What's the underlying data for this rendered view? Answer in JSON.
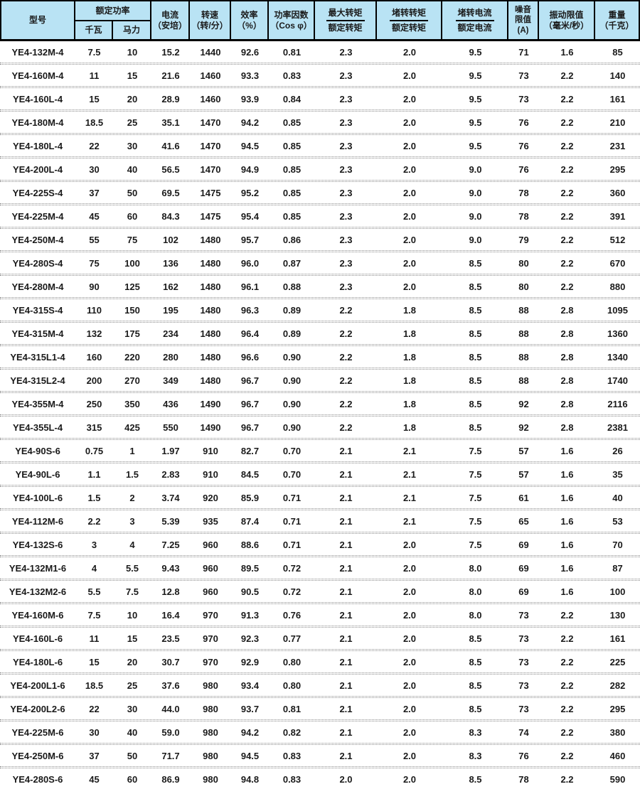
{
  "colors": {
    "header_bg": "#b9e3f4",
    "grid_border": "#000000",
    "row_separator": "#8c8c8c",
    "text": "#1a1a1a"
  },
  "table": {
    "header": {
      "model": "型号",
      "rated_power": "额定功率",
      "kw": "千瓦",
      "hp": "马力",
      "current_line1": "电流",
      "current_line2": "（安培）",
      "speed_line1": "转速",
      "speed_line2": "（转/分）",
      "efficiency_line1": "效率",
      "efficiency_line2": "（%）",
      "power_factor_line1": "功率因数",
      "power_factor_line2": "（Cos φ）",
      "max_torque_num": "最大转矩",
      "max_torque_den": "额定转矩",
      "locked_torque_num": "堵转转矩",
      "locked_torque_den": "额定转矩",
      "locked_current_num": "堵转电流",
      "locked_current_den": "额定电流",
      "noise_line1": "噪音",
      "noise_line2": "限值",
      "noise_line3": "(A)",
      "vibration_line1": "振动限值",
      "vibration_line2": "（毫米/秒）",
      "weight_line1": "重量",
      "weight_line2": "（千克）"
    },
    "rows": [
      [
        "YE4-132M-4",
        "7.5",
        "10",
        "15.2",
        "1440",
        "92.6",
        "0.81",
        "2.3",
        "2.0",
        "9.5",
        "71",
        "1.6",
        "85"
      ],
      [
        "YE4-160M-4",
        "11",
        "15",
        "21.6",
        "1460",
        "93.3",
        "0.83",
        "2.3",
        "2.0",
        "9.5",
        "73",
        "2.2",
        "140"
      ],
      [
        "YE4-160L-4",
        "15",
        "20",
        "28.9",
        "1460",
        "93.9",
        "0.84",
        "2.3",
        "2.0",
        "9.5",
        "73",
        "2.2",
        "161"
      ],
      [
        "YE4-180M-4",
        "18.5",
        "25",
        "35.1",
        "1470",
        "94.2",
        "0.85",
        "2.3",
        "2.0",
        "9.5",
        "76",
        "2.2",
        "210"
      ],
      [
        "YE4-180L-4",
        "22",
        "30",
        "41.6",
        "1470",
        "94.5",
        "0.85",
        "2.3",
        "2.0",
        "9.5",
        "76",
        "2.2",
        "231"
      ],
      [
        "YE4-200L-4",
        "30",
        "40",
        "56.5",
        "1470",
        "94.9",
        "0.85",
        "2.3",
        "2.0",
        "9.0",
        "76",
        "2.2",
        "295"
      ],
      [
        "YE4-225S-4",
        "37",
        "50",
        "69.5",
        "1475",
        "95.2",
        "0.85",
        "2.3",
        "2.0",
        "9.0",
        "78",
        "2.2",
        "360"
      ],
      [
        "YE4-225M-4",
        "45",
        "60",
        "84.3",
        "1475",
        "95.4",
        "0.85",
        "2.3",
        "2.0",
        "9.0",
        "78",
        "2.2",
        "391"
      ],
      [
        "YE4-250M-4",
        "55",
        "75",
        "102",
        "1480",
        "95.7",
        "0.86",
        "2.3",
        "2.0",
        "9.0",
        "79",
        "2.2",
        "512"
      ],
      [
        "YE4-280S-4",
        "75",
        "100",
        "136",
        "1480",
        "96.0",
        "0.87",
        "2.3",
        "2.0",
        "8.5",
        "80",
        "2.2",
        "670"
      ],
      [
        "YE4-280M-4",
        "90",
        "125",
        "162",
        "1480",
        "96.1",
        "0.88",
        "2.3",
        "2.0",
        "8.5",
        "80",
        "2.2",
        "880"
      ],
      [
        "YE4-315S-4",
        "110",
        "150",
        "195",
        "1480",
        "96.3",
        "0.89",
        "2.2",
        "1.8",
        "8.5",
        "88",
        "2.8",
        "1095"
      ],
      [
        "YE4-315M-4",
        "132",
        "175",
        "234",
        "1480",
        "96.4",
        "0.89",
        "2.2",
        "1.8",
        "8.5",
        "88",
        "2.8",
        "1360"
      ],
      [
        "YE4-315L1-4",
        "160",
        "220",
        "280",
        "1480",
        "96.6",
        "0.90",
        "2.2",
        "1.8",
        "8.5",
        "88",
        "2.8",
        "1340"
      ],
      [
        "YE4-315L2-4",
        "200",
        "270",
        "349",
        "1480",
        "96.7",
        "0.90",
        "2.2",
        "1.8",
        "8.5",
        "88",
        "2.8",
        "1740"
      ],
      [
        "YE4-355M-4",
        "250",
        "350",
        "436",
        "1490",
        "96.7",
        "0.90",
        "2.2",
        "1.8",
        "8.5",
        "92",
        "2.8",
        "2116"
      ],
      [
        "YE4-355L-4",
        "315",
        "425",
        "550",
        "1490",
        "96.7",
        "0.90",
        "2.2",
        "1.8",
        "8.5",
        "92",
        "2.8",
        "2381"
      ],
      [
        "YE4-90S-6",
        "0.75",
        "1",
        "1.97",
        "910",
        "82.7",
        "0.70",
        "2.1",
        "2.1",
        "7.5",
        "57",
        "1.6",
        "26"
      ],
      [
        "YE4-90L-6",
        "1.1",
        "1.5",
        "2.83",
        "910",
        "84.5",
        "0.70",
        "2.1",
        "2.1",
        "7.5",
        "57",
        "1.6",
        "35"
      ],
      [
        "YE4-100L-6",
        "1.5",
        "2",
        "3.74",
        "920",
        "85.9",
        "0.71",
        "2.1",
        "2.1",
        "7.5",
        "61",
        "1.6",
        "40"
      ],
      [
        "YE4-112M-6",
        "2.2",
        "3",
        "5.39",
        "935",
        "87.4",
        "0.71",
        "2.1",
        "2.1",
        "7.5",
        "65",
        "1.6",
        "53"
      ],
      [
        "YE4-132S-6",
        "3",
        "4",
        "7.25",
        "960",
        "88.6",
        "0.71",
        "2.1",
        "2.0",
        "7.5",
        "69",
        "1.6",
        "70"
      ],
      [
        "YE4-132M1-6",
        "4",
        "5.5",
        "9.43",
        "960",
        "89.5",
        "0.72",
        "2.1",
        "2.0",
        "8.0",
        "69",
        "1.6",
        "87"
      ],
      [
        "YE4-132M2-6",
        "5.5",
        "7.5",
        "12.8",
        "960",
        "90.5",
        "0.72",
        "2.1",
        "2.0",
        "8.0",
        "69",
        "1.6",
        "100"
      ],
      [
        "YE4-160M-6",
        "7.5",
        "10",
        "16.4",
        "970",
        "91.3",
        "0.76",
        "2.1",
        "2.0",
        "8.0",
        "73",
        "2.2",
        "130"
      ],
      [
        "YE4-160L-6",
        "11",
        "15",
        "23.5",
        "970",
        "92.3",
        "0.77",
        "2.1",
        "2.0",
        "8.5",
        "73",
        "2.2",
        "161"
      ],
      [
        "YE4-180L-6",
        "15",
        "20",
        "30.7",
        "970",
        "92.9",
        "0.80",
        "2.1",
        "2.0",
        "8.5",
        "73",
        "2.2",
        "225"
      ],
      [
        "YE4-200L1-6",
        "18.5",
        "25",
        "37.6",
        "980",
        "93.4",
        "0.80",
        "2.1",
        "2.0",
        "8.5",
        "73",
        "2.2",
        "282"
      ],
      [
        "YE4-200L2-6",
        "22",
        "30",
        "44.0",
        "980",
        "93.7",
        "0.81",
        "2.1",
        "2.0",
        "8.5",
        "73",
        "2.2",
        "295"
      ],
      [
        "YE4-225M-6",
        "30",
        "40",
        "59.0",
        "980",
        "94.2",
        "0.82",
        "2.1",
        "2.0",
        "8.3",
        "74",
        "2.2",
        "380"
      ],
      [
        "YE4-250M-6",
        "37",
        "50",
        "71.7",
        "980",
        "94.5",
        "0.83",
        "2.1",
        "2.0",
        "8.3",
        "76",
        "2.2",
        "460"
      ],
      [
        "YE4-280S-6",
        "45",
        "60",
        "86.9",
        "980",
        "94.8",
        "0.83",
        "2.0",
        "2.0",
        "8.5",
        "78",
        "2.2",
        "590"
      ]
    ]
  }
}
